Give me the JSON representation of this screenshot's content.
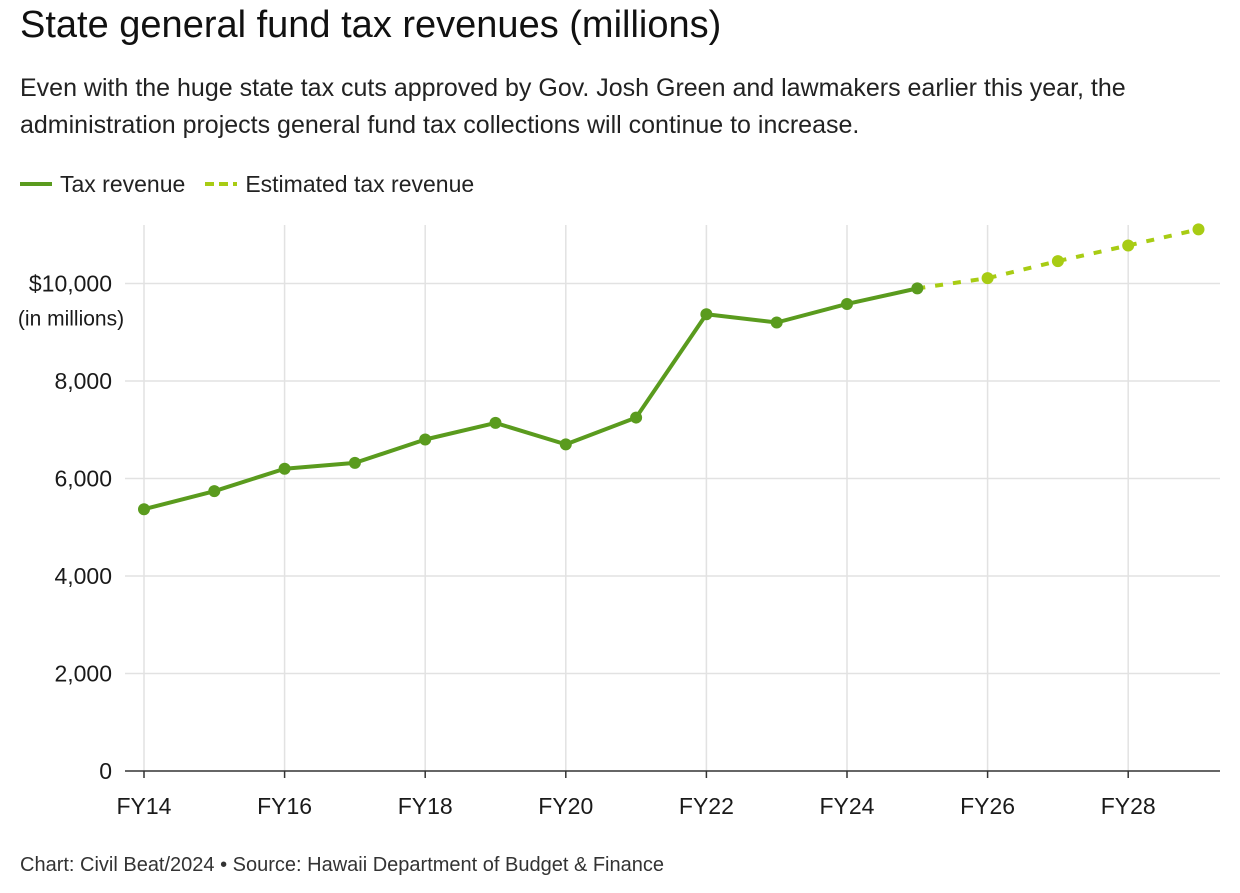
{
  "title": "State general fund tax revenues (millions)",
  "subtitle": "Even with the huge state tax cuts approved by Gov. Josh Green and lawmakers earlier this year, the administration projects general fund tax collections will continue to increase.",
  "footer": "Chart: Civil Beat/2024 • Source: Hawaii Department of Budget & Finance",
  "colors": {
    "actual": "#5a9b1e",
    "estimated": "#a8cc14",
    "grid": "#e2e2e2",
    "axis": "#333333"
  },
  "chart_data": {
    "type": "line",
    "x": [
      "FY14",
      "FY15",
      "FY16",
      "FY17",
      "FY18",
      "FY19",
      "FY20",
      "FY21",
      "FY22",
      "FY23",
      "FY24",
      "FY25",
      "FY26",
      "FY27",
      "FY28",
      "FY29"
    ],
    "x_tick_labels": [
      "FY14",
      "FY16",
      "FY18",
      "FY20",
      "FY22",
      "FY24",
      "FY26",
      "FY28"
    ],
    "ylim": [
      0,
      11200
    ],
    "y_ticks": [
      0,
      2000,
      4000,
      6000,
      8000,
      10000
    ],
    "y_tick_labels": [
      "0",
      "2,000",
      "4,000",
      "6,000",
      "8,000",
      "$10,000"
    ],
    "ylabel": "(in millions)",
    "grid": true,
    "legend_position": "top-left",
    "series": [
      {
        "name": "Tax revenue",
        "style": "solid",
        "x": [
          "FY14",
          "FY15",
          "FY16",
          "FY17",
          "FY18",
          "FY19",
          "FY20",
          "FY21",
          "FY22",
          "FY23",
          "FY24",
          "FY25"
        ],
        "values": [
          5370,
          5740,
          6200,
          6320,
          6800,
          7140,
          6700,
          7250,
          9370,
          9200,
          9580,
          9900
        ]
      },
      {
        "name": "Estimated tax revenue",
        "style": "dashed",
        "x": [
          "FY25",
          "FY26",
          "FY27",
          "FY28",
          "FY29"
        ],
        "values": [
          9900,
          10110,
          10460,
          10780,
          11110
        ]
      }
    ]
  }
}
